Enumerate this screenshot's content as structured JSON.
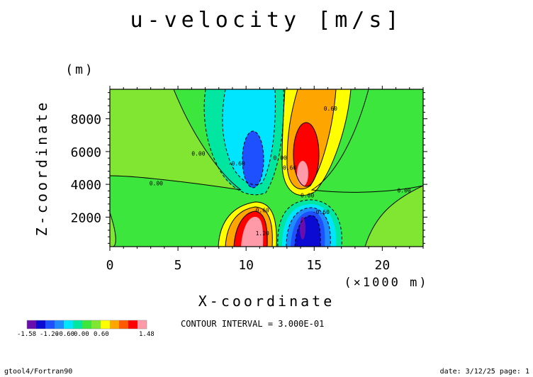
{
  "chart_data": {
    "type": "contour",
    "title": "u-velocity [m/s]",
    "xlabel": "X-coordinate",
    "ylabel": "Z-coordinate",
    "x_unit": "(×1000 m)",
    "y_unit": "(m)",
    "xlim": [
      0,
      23
    ],
    "ylim": [
      200,
      9800
    ],
    "x_ticks": [
      0,
      5,
      10,
      15,
      20
    ],
    "y_ticks": [
      2000,
      4000,
      6000,
      8000
    ],
    "contour_interval_text": "CONTOUR INTERVAL = 3.000E-01",
    "colorbar": {
      "colors": [
        "#6a0dad",
        "#0a0ad2",
        "#1e50ff",
        "#1e8cff",
        "#00e5ff",
        "#00e6a0",
        "#3ce63c",
        "#80e632",
        "#ffff00",
        "#ffa500",
        "#ff5a00",
        "#ff0000",
        "#ff9aa8"
      ],
      "labels": [
        "-1.58",
        "-1.20",
        "-0.60",
        "0.00",
        "0.60",
        "1.48"
      ]
    },
    "contour_labels": [
      {
        "x": 6.5,
        "z": 5750,
        "text": "0.00"
      },
      {
        "x": 3.4,
        "z": 3950,
        "text": "0.00"
      },
      {
        "x": 9.3,
        "z": 5150,
        "text": "-0.60"
      },
      {
        "x": 12.5,
        "z": 5500,
        "text": "0.00"
      },
      {
        "x": 13.2,
        "z": 4900,
        "text": "0.60"
      },
      {
        "x": 16.2,
        "z": 8500,
        "text": "0.60"
      },
      {
        "x": 14.5,
        "z": 3200,
        "text": "0.00"
      },
      {
        "x": 11.2,
        "z": 2300,
        "text": "0.60"
      },
      {
        "x": 15.5,
        "z": 2200,
        "text": "-0.60"
      },
      {
        "x": 11.2,
        "z": 900,
        "text": "1.20"
      },
      {
        "x": 21.6,
        "z": 3500,
        "text": "0.00"
      }
    ]
  },
  "footer": {
    "left": "gtool4/Fortran90",
    "right": "date: 3/12/25 page: 1"
  }
}
